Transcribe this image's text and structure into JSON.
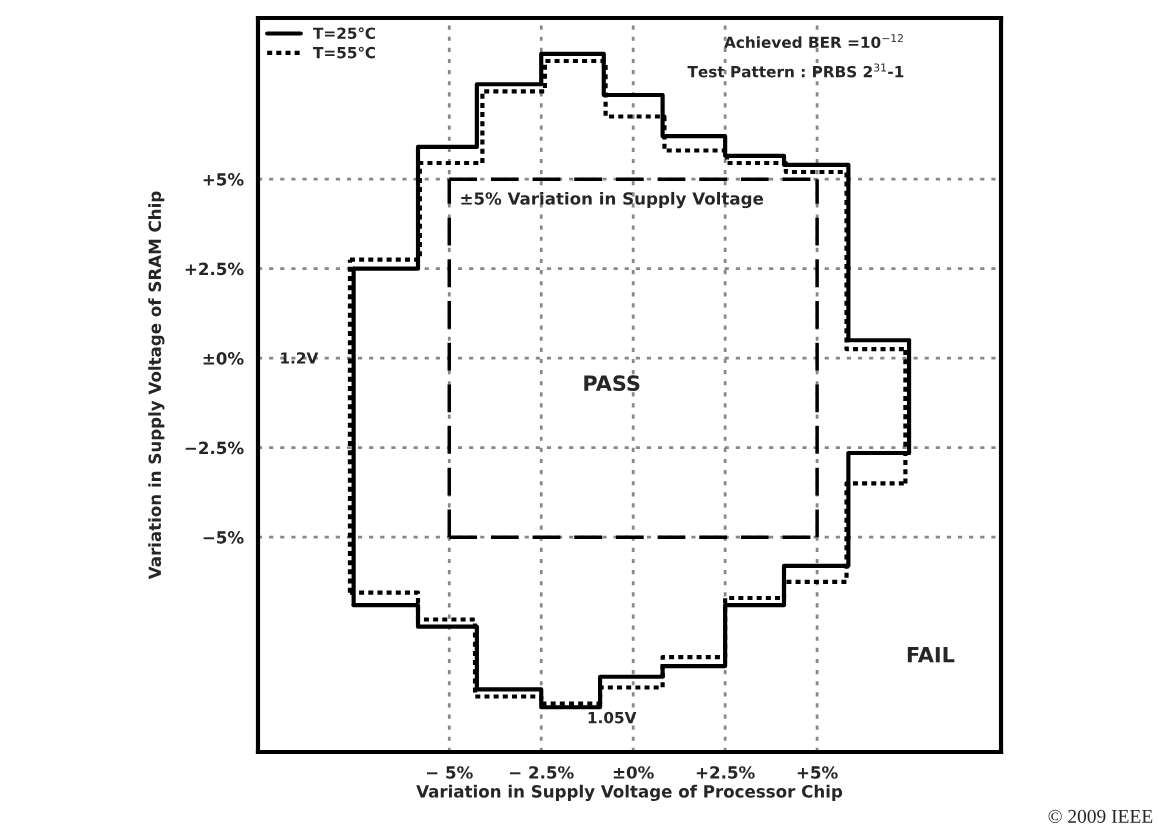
{
  "chart_data": {
    "type": "step",
    "xlabel": "Variation in Supply Voltage of Processor Chip",
    "ylabel": "Variation in Supply Voltage of SRAM Chip",
    "xlim": [
      -10.2,
      10
    ],
    "ylim": [
      -11,
      9.5
    ],
    "xticks": [
      {
        "value": -5,
        "label": "− 5%"
      },
      {
        "value": -2.5,
        "label": "− 2.5%"
      },
      {
        "value": 0,
        "label": "±0%"
      },
      {
        "value": 2.5,
        "label": "+2.5%"
      },
      {
        "value": 5,
        "label": "+5%"
      }
    ],
    "yticks": [
      {
        "value": -5,
        "label": "−5%"
      },
      {
        "value": -2.5,
        "label": "−2.5%"
      },
      {
        "value": 0,
        "label": "±0%"
      },
      {
        "value": 2.5,
        "label": "+2.5%"
      },
      {
        "value": 5,
        "label": "+5%"
      }
    ],
    "grid": true,
    "legend": "top left",
    "marker": "none",
    "series": [
      {
        "name": "T=25℃",
        "color": "#000000",
        "line_style": "solid",
        "x": [
          -7.6,
          -5.85,
          -4.25,
          -2.5,
          -0.8,
          0.8,
          2.5,
          4.1,
          5.85,
          7.5
        ],
        "values": [
          2.5,
          5.9,
          7.65,
          8.5,
          7.35,
          6.2,
          5.65,
          5.4,
          0.5,
          0.5
        ]
      },
      {
        "color": "#000000",
        "line_style": "solid",
        "x": [
          -7.6,
          -5.85,
          -4.25,
          -2.5,
          -0.9,
          0.8,
          2.5,
          4.1,
          5.85,
          7.5
        ],
        "values": [
          -6.9,
          -7.5,
          -9.25,
          -9.75,
          -8.9,
          -8.6,
          -6.9,
          -5.8,
          -2.65,
          -2.65
        ]
      },
      {
        "color": "#000000",
        "line_style": "solid",
        "type": "line",
        "x": [
          -7.6,
          -7.6
        ],
        "values": [
          -6.9,
          2.5
        ]
      },
      {
        "color": "#000000",
        "line_style": "solid",
        "type": "line",
        "x": [
          7.5,
          7.5
        ],
        "values": [
          -2.65,
          0.5
        ]
      },
      {
        "name": "T=55℃",
        "color": "#000000",
        "line_style": "dotted",
        "x": [
          -7.7,
          -5.8,
          -4.1,
          -2.4,
          -0.75,
          0.85,
          2.55,
          4.15,
          5.8,
          7.4
        ],
        "values": [
          2.75,
          5.45,
          7.45,
          8.3,
          6.75,
          5.8,
          5.45,
          5.2,
          0.25,
          0.25
        ]
      },
      {
        "color": "#000000",
        "line_style": "dotted",
        "x": [
          -7.7,
          -5.85,
          -4.3,
          -2.5,
          -0.9,
          0.8,
          2.5,
          4.1,
          5.8,
          7.4
        ],
        "values": [
          -6.55,
          -7.3,
          -9.45,
          -9.65,
          -9.2,
          -8.35,
          -6.7,
          -6.25,
          -3.5,
          -3.5
        ]
      },
      {
        "color": "#000000",
        "line_style": "dotted",
        "type": "line",
        "x": [
          -7.7,
          -7.7
        ],
        "values": [
          -6.55,
          2.75
        ]
      },
      {
        "color": "#000000",
        "line_style": "dotted",
        "type": "line",
        "x": [
          7.4,
          7.4
        ],
        "values": [
          -3.5,
          0.25
        ]
      },
      {
        "color": "#000000",
        "line_style": "dashed",
        "x": [
          -5,
          5
        ],
        "values": [
          5,
          5
        ]
      },
      {
        "color": "#000000",
        "line_style": "dashed",
        "x": [
          -5,
          5
        ],
        "values": [
          -5,
          -5
        ]
      },
      {
        "color": "#000000",
        "line_style": "dashed",
        "type": "line",
        "x": [
          -5,
          -5
        ],
        "values": [
          -5,
          5
        ]
      },
      {
        "color": "#000000",
        "line_style": "dashed",
        "type": "line",
        "x": [
          5,
          5
        ],
        "values": [
          -5,
          5
        ]
      }
    ],
    "annotations": [
      "±5% Variation in Supply Voltage",
      "PASS",
      "FAIL",
      "1.2V",
      "1.05V",
      "Achieved BER =10$^{−12}$",
      "Test Pattern : PRBS 2$^{31}$-1",
      "© 2009 IEEE"
    ]
  }
}
